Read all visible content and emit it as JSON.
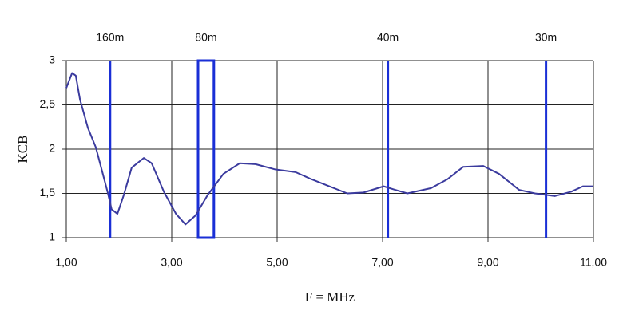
{
  "chart_data": {
    "type": "line",
    "x_label": "F = MHz",
    "y_label": "KCB",
    "xlim": [
      1,
      11
    ],
    "ylim": [
      1,
      3
    ],
    "xticks": [
      {
        "value": 1,
        "label": "1,00"
      },
      {
        "value": 3,
        "label": "3,00"
      },
      {
        "value": 5,
        "label": "5,00"
      },
      {
        "value": 7,
        "label": "7,00"
      },
      {
        "value": 9,
        "label": "9,00"
      },
      {
        "value": 11,
        "label": "11,00"
      }
    ],
    "yticks": [
      1,
      {
        "value": 1.5,
        "label": "1,5"
      },
      2,
      {
        "value": 2.5,
        "label": "2,5"
      },
      3
    ],
    "grid": true,
    "bands": [
      {
        "label": "160m",
        "x": 1.83
      },
      {
        "label": "80m",
        "from": 3.5,
        "to": 3.8
      },
      {
        "label": "40m",
        "x": 7.1
      },
      {
        "label": "30m",
        "x": 10.1
      }
    ],
    "band_color": "#1a2fd6",
    "series": [
      {
        "name": "KCB",
        "color": "#3b3b9e",
        "x": [
          1.0,
          1.11,
          1.18,
          1.26,
          1.41,
          1.56,
          1.68,
          1.79,
          1.86,
          1.97,
          2.09,
          2.24,
          2.47,
          2.62,
          2.85,
          3.08,
          3.26,
          3.45,
          3.68,
          3.98,
          4.29,
          4.59,
          4.97,
          5.35,
          5.65,
          5.95,
          6.33,
          6.64,
          7.02,
          7.24,
          7.47,
          7.92,
          8.23,
          8.53,
          8.91,
          9.21,
          9.59,
          9.89,
          10.27,
          10.58,
          10.8,
          11.0
        ],
        "values": [
          2.69,
          2.86,
          2.83,
          2.56,
          2.24,
          2.02,
          1.75,
          1.5,
          1.32,
          1.27,
          1.48,
          1.79,
          1.9,
          1.84,
          1.52,
          1.27,
          1.15,
          1.25,
          1.48,
          1.72,
          1.84,
          1.83,
          1.77,
          1.74,
          1.66,
          1.59,
          1.5,
          1.51,
          1.58,
          1.54,
          1.5,
          1.56,
          1.66,
          1.8,
          1.81,
          1.72,
          1.54,
          1.5,
          1.47,
          1.52,
          1.58,
          1.58
        ]
      }
    ]
  }
}
